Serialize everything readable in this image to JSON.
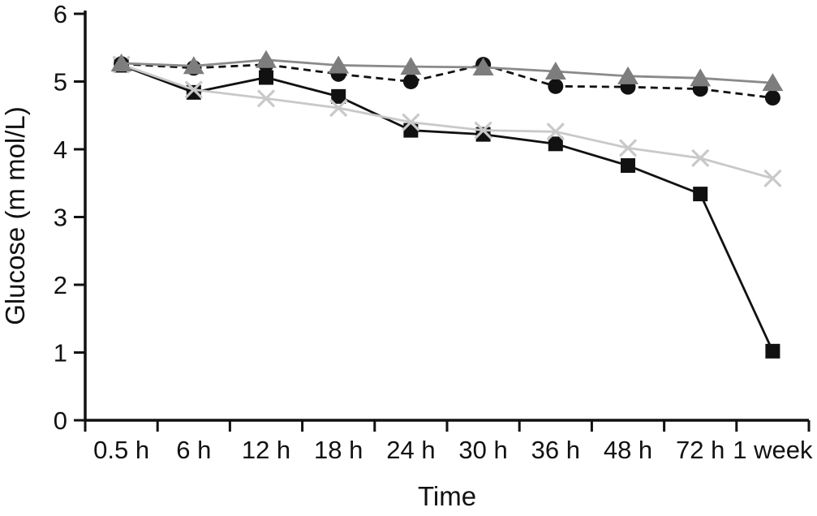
{
  "figure": {
    "background": "#ffffff",
    "ink_color": "#111111"
  },
  "chart_data": {
    "type": "line",
    "title": "",
    "xlabel": "Time",
    "ylabel": "Glucose (m mol/L)",
    "categories": [
      "0.5 h",
      "6 h",
      "12 h",
      "18 h",
      "24 h",
      "30 h",
      "36 h",
      "48 h",
      "72 h",
      "1 week"
    ],
    "y_ticks": [
      0,
      1,
      2,
      3,
      4,
      5,
      6
    ],
    "ylim": [
      0,
      6
    ],
    "grid": false,
    "legend": "none",
    "series": [
      {
        "name": "square-black-solid",
        "marker": "square",
        "marker_color": "#111111",
        "line_color": "#111111",
        "line_style": "solid",
        "values": [
          5.24,
          4.84,
          5.06,
          4.78,
          4.28,
          4.22,
          4.08,
          3.76,
          3.34,
          1.02
        ]
      },
      {
        "name": "x-lightgray-solid",
        "marker": "x",
        "marker_color": "#c9c9c9",
        "line_color": "#c9c9c9",
        "line_style": "solid",
        "values": [
          5.25,
          4.88,
          4.75,
          4.61,
          4.4,
          4.28,
          4.26,
          4.02,
          3.87,
          3.57
        ]
      },
      {
        "name": "circle-black-dashed",
        "marker": "circle",
        "marker_color": "#111111",
        "line_color": "#111111",
        "line_style": "dashed",
        "values": [
          5.26,
          5.2,
          5.25,
          5.11,
          5.0,
          5.25,
          4.93,
          4.92,
          4.89,
          4.76
        ]
      },
      {
        "name": "triangle-gray-solid",
        "marker": "triangle",
        "marker_color": "#7d7d7d",
        "line_color": "#8a8a8a",
        "line_style": "solid",
        "values": [
          5.27,
          5.23,
          5.32,
          5.24,
          5.22,
          5.21,
          5.15,
          5.08,
          5.05,
          4.98
        ]
      }
    ],
    "draw_order": [
      "square-black-solid",
      "x-lightgray-solid",
      "circle-black-dashed",
      "triangle-gray-solid"
    ]
  }
}
